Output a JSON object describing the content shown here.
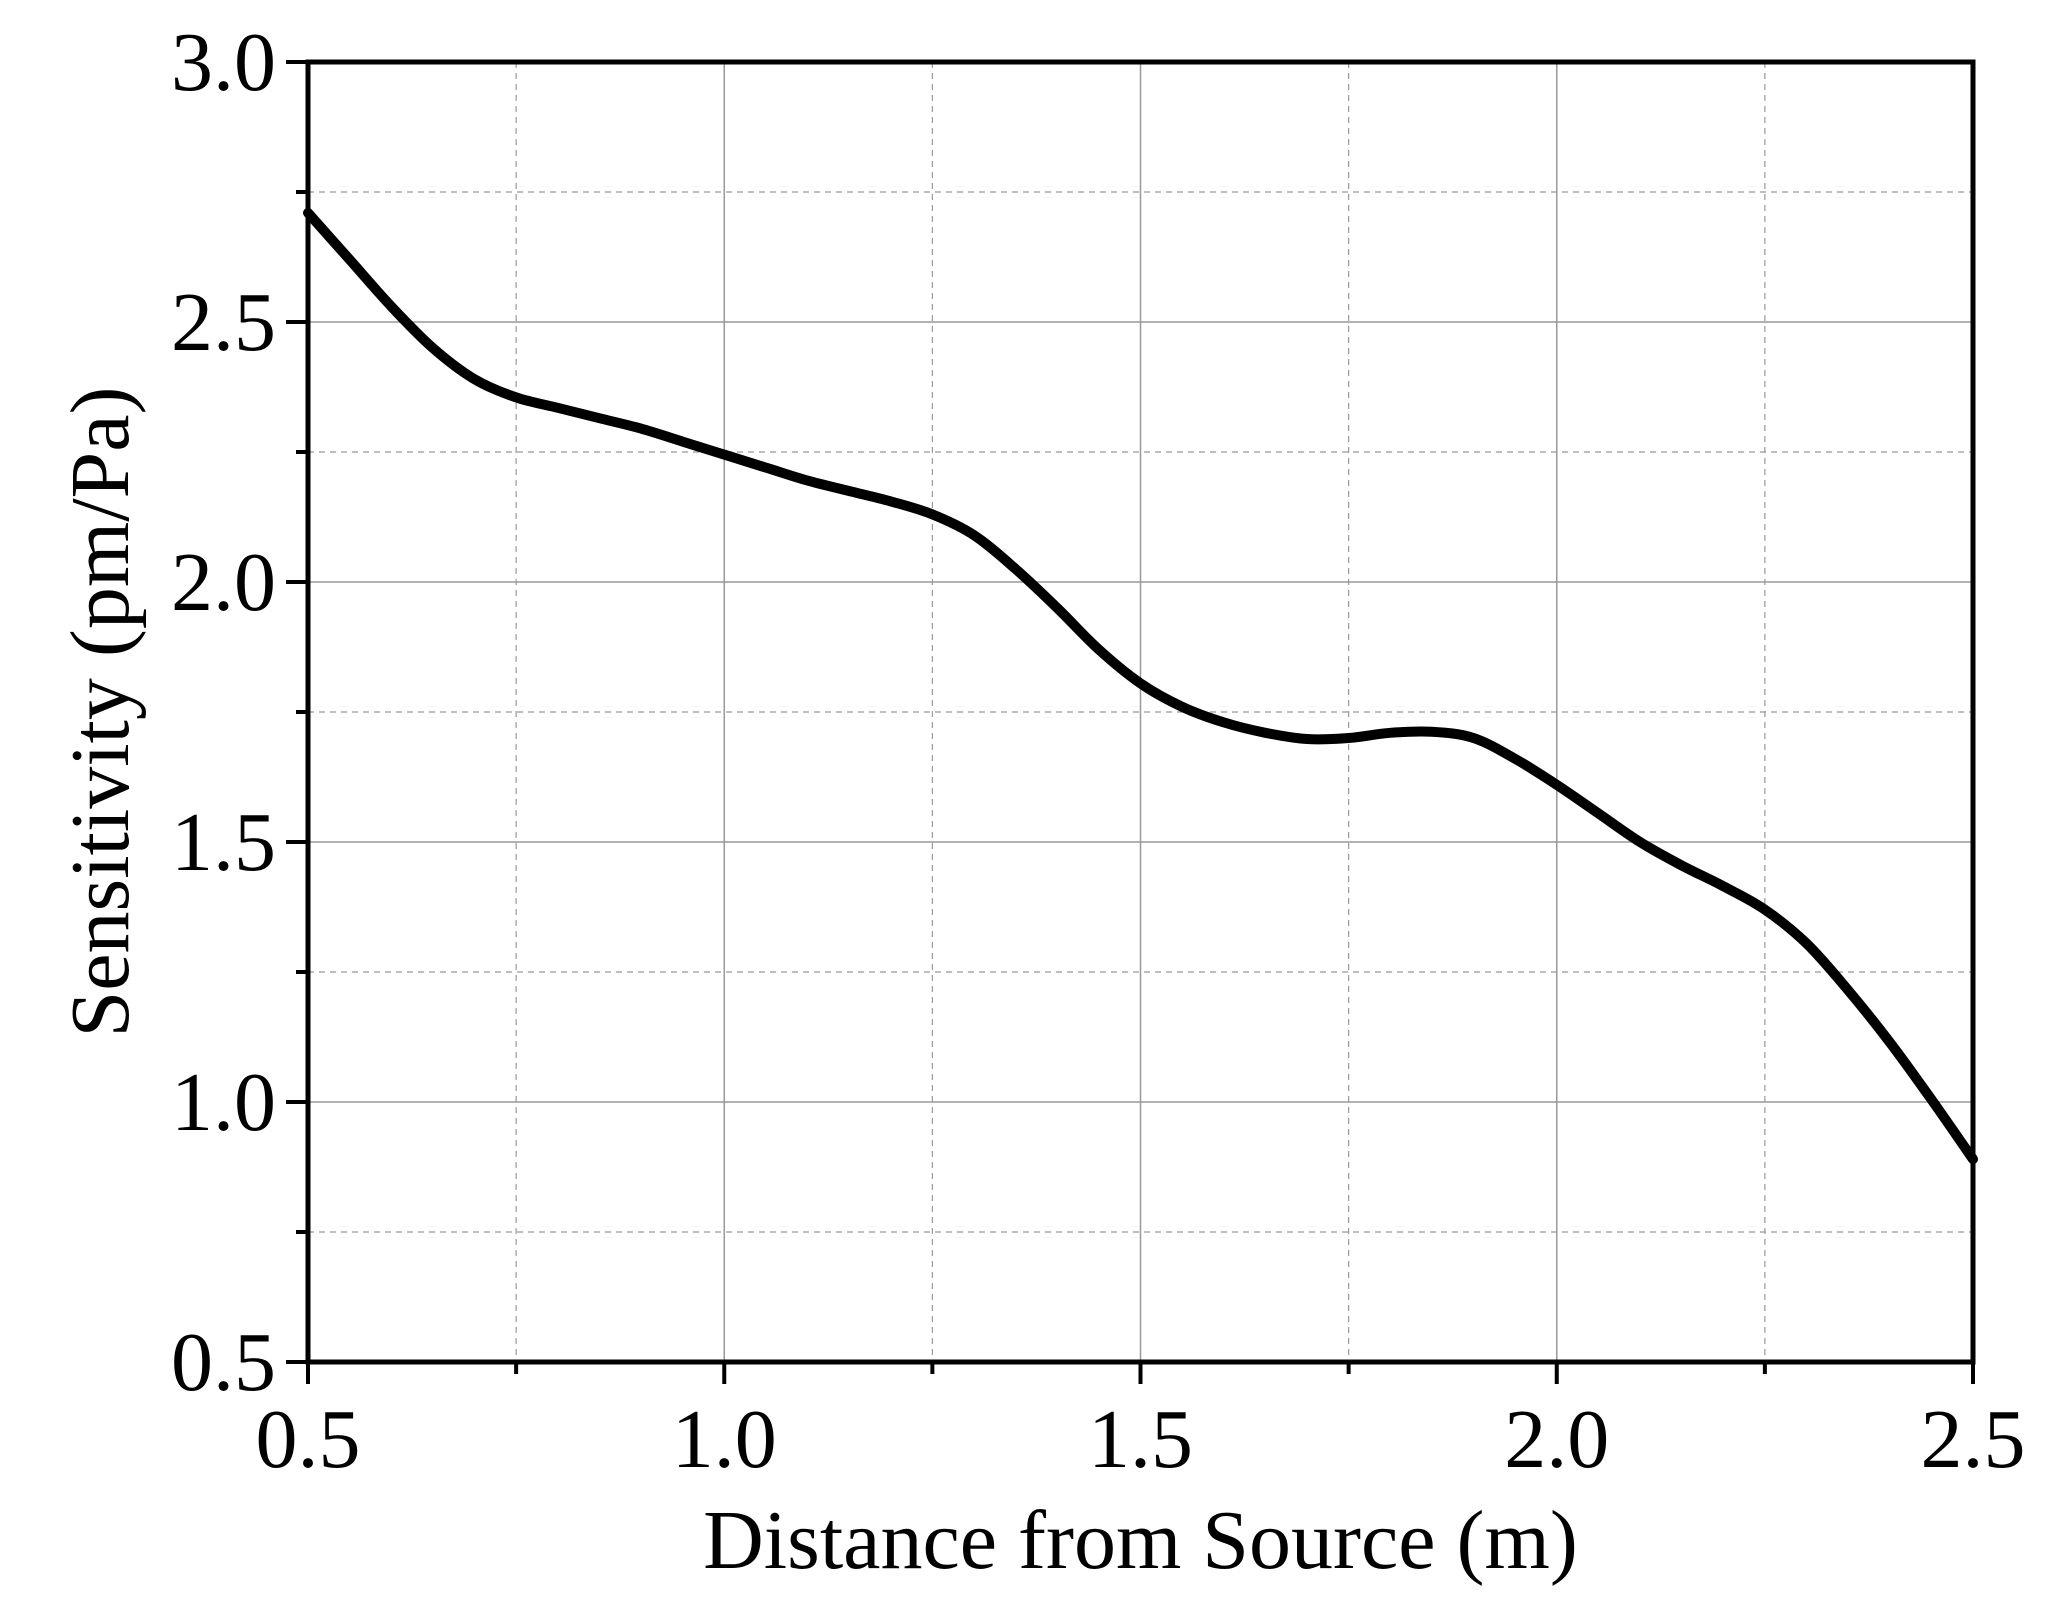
{
  "chart_data": {
    "type": "line",
    "title": "",
    "xlabel": "Distance from Source (m)",
    "ylabel": "Sensitivity (pm/Pa)",
    "xlim": [
      0.5,
      2.5
    ],
    "ylim": [
      0.5,
      3.0
    ],
    "x_ticks": [
      "0.5",
      "1.0",
      "1.5",
      "2.0",
      "2.5"
    ],
    "y_ticks": [
      "0.5",
      "1.0",
      "1.5",
      "2.0",
      "2.5",
      "3.0"
    ],
    "x_minor_step": 0.25,
    "y_minor_step": 0.25,
    "grid": true,
    "legend": "none",
    "line_color": "#000000",
    "grid_color": "#999999",
    "series": [
      {
        "x": [
          0.5,
          0.55,
          0.6,
          0.65,
          0.7,
          0.75,
          0.8,
          0.85,
          0.9,
          0.95,
          1.0,
          1.05,
          1.1,
          1.15,
          1.2,
          1.25,
          1.3,
          1.35,
          1.4,
          1.45,
          1.5,
          1.55,
          1.6,
          1.65,
          1.7,
          1.75,
          1.8,
          1.85,
          1.9,
          1.95,
          2.0,
          2.05,
          2.1,
          2.15,
          2.2,
          2.25,
          2.3,
          2.35,
          2.4,
          2.45,
          2.5
        ],
        "y": [
          2.71,
          2.62,
          2.53,
          2.45,
          2.39,
          2.355,
          2.335,
          2.315,
          2.295,
          2.27,
          2.245,
          2.22,
          2.195,
          2.175,
          2.155,
          2.13,
          2.09,
          2.025,
          1.95,
          1.87,
          1.805,
          1.76,
          1.73,
          1.71,
          1.698,
          1.7,
          1.71,
          1.712,
          1.7,
          1.66,
          1.61,
          1.555,
          1.5,
          1.455,
          1.415,
          1.37,
          1.305,
          1.215,
          1.115,
          1.005,
          0.89
        ]
      }
    ]
  }
}
